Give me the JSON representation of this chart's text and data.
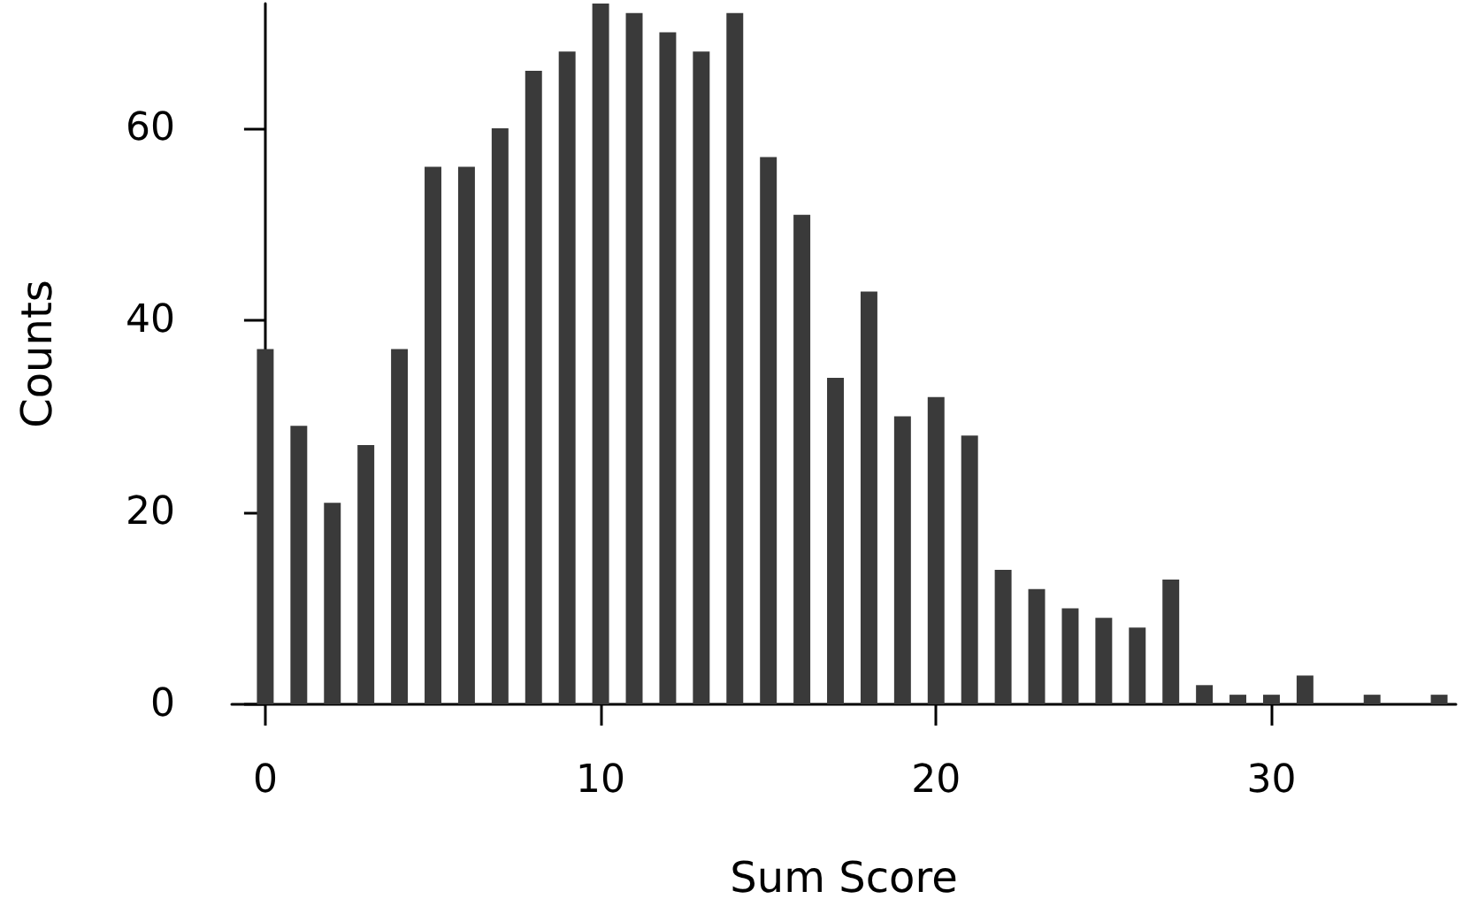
{
  "chart_data": {
    "type": "bar",
    "xlabel": "Sum Score",
    "ylabel": "Counts",
    "x": [
      0,
      1,
      2,
      3,
      4,
      5,
      6,
      7,
      8,
      9,
      10,
      11,
      12,
      13,
      14,
      15,
      16,
      17,
      18,
      19,
      20,
      21,
      22,
      23,
      24,
      25,
      26,
      27,
      28,
      29,
      30,
      31,
      33,
      35
    ],
    "values": [
      37,
      29,
      21,
      27,
      37,
      56,
      56,
      60,
      66,
      68,
      73,
      72,
      70,
      68,
      72,
      57,
      51,
      34,
      43,
      30,
      32,
      28,
      14,
      12,
      10,
      9,
      8,
      13,
      2,
      1,
      1,
      3,
      1,
      1
    ],
    "color": "#3a3a3a",
    "xlim": [
      -1,
      35.5
    ],
    "xticks": [
      0,
      10,
      20,
      30
    ],
    "ylim": [
      0,
      73
    ],
    "yticks": [
      0,
      20,
      40,
      60
    ],
    "grid": false
  }
}
